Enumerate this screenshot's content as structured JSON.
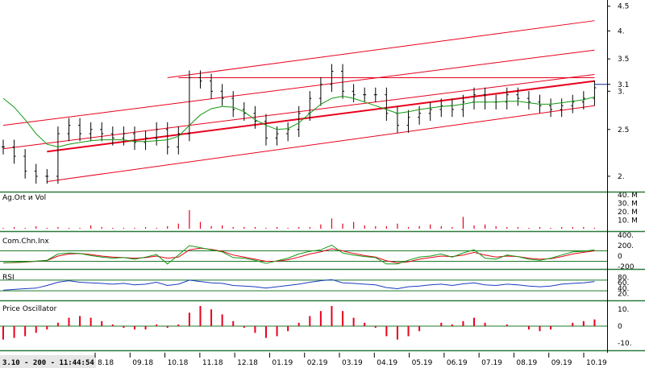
{
  "colors": {
    "price_bar": "#000000",
    "channel": "#e8001c",
    "moving_average": "#119911",
    "volume": "#e8001c",
    "cci": "#119911",
    "cci_signal": "#e8001c",
    "rsi": "#1a3cbf",
    "oscillator": "#e8001c",
    "panel_border": "#2a7a3a",
    "reference_line": "#1f7a2a",
    "last_price_line": "#0b2a8c"
  },
  "timestamp": "3.10 - 200 - 11:44:54",
  "x_tick_labels": [
    "8.18",
    "09.18",
    "10.18",
    "11.18",
    "12.18",
    "01.19",
    "02.19",
    "03.19",
    "04.19",
    "05.19",
    "06.19",
    "07.19",
    "08.19",
    "09.19",
    "10.19"
  ],
  "panels": [
    {
      "name": "price",
      "label": "",
      "ticks": [
        "4.5",
        "4.",
        "3.5",
        "3.1",
        "3.",
        "2.5",
        "2."
      ]
    },
    {
      "name": "volume",
      "label": "Ag.Ort и Vol",
      "ticks": [
        "40. M",
        "30. M",
        "20. M",
        "10. M"
      ]
    },
    {
      "name": "cci",
      "label": "Com.Chn.Inx",
      "ticks": [
        "400.",
        "200.",
        "0",
        "-200"
      ]
    },
    {
      "name": "rsi",
      "label": "RSI",
      "ticks": [
        "80.",
        "60.",
        "40.",
        "20."
      ]
    },
    {
      "name": "oscillator",
      "label": "Price Oscillator",
      "ticks": [
        "10.",
        "0",
        "-10."
      ]
    }
  ],
  "chart_data": [
    {
      "type": "ohlc",
      "panel": "price",
      "y_axis": {
        "scale": "log",
        "range": [
          1.88,
          4.6
        ],
        "ticks": [
          4.5,
          4.0,
          3.5,
          3.1,
          3.0,
          2.5,
          2.0
        ],
        "last_price": 3.1
      },
      "x_axis": {
        "categories": [
          "8.18",
          "09.18",
          "10.18",
          "11.18",
          "12.18",
          "01.19",
          "02.19",
          "03.19",
          "04.19",
          "05.19",
          "06.19",
          "07.19",
          "08.19",
          "09.19",
          "10.19"
        ]
      },
      "close": [
        2.3,
        2.2,
        2.05,
        2.0,
        2.0,
        2.45,
        2.55,
        2.45,
        2.5,
        2.45,
        2.4,
        2.45,
        2.35,
        2.4,
        2.5,
        2.3,
        2.45,
        3.2,
        3.15,
        3.0,
        2.9,
        2.75,
        2.7,
        2.6,
        2.4,
        2.45,
        2.5,
        2.7,
        2.9,
        3.1,
        3.3,
        3.0,
        2.95,
        2.95,
        2.95,
        2.7,
        2.55,
        2.65,
        2.7,
        2.75,
        2.8,
        2.75,
        2.85,
        2.95,
        2.85,
        2.85,
        2.95,
        2.9,
        2.85,
        2.8,
        2.75,
        2.8,
        2.85,
        2.9,
        3.05
      ],
      "ma": [
        2.9,
        2.78,
        2.62,
        2.45,
        2.33,
        2.3,
        2.33,
        2.35,
        2.37,
        2.38,
        2.38,
        2.38,
        2.36,
        2.36,
        2.37,
        2.38,
        2.42,
        2.55,
        2.68,
        2.76,
        2.79,
        2.78,
        2.72,
        2.62,
        2.55,
        2.5,
        2.51,
        2.58,
        2.7,
        2.82,
        2.9,
        2.93,
        2.9,
        2.85,
        2.8,
        2.75,
        2.7,
        2.72,
        2.75,
        2.77,
        2.79,
        2.8,
        2.82,
        2.85,
        2.85,
        2.85,
        2.86,
        2.86,
        2.84,
        2.82,
        2.82,
        2.84,
        2.86,
        2.88,
        2.92
      ],
      "channels": [
        {
          "from": [
            0,
            2.55
          ],
          "to": [
            54,
            3.65
          ],
          "width": 1
        },
        {
          "from": [
            0,
            2.28
          ],
          "to": [
            54,
            3.25
          ],
          "width": 1
        },
        {
          "from": [
            4,
            2.25
          ],
          "to": [
            54,
            3.15
          ],
          "width": 2
        },
        {
          "from": [
            4,
            1.95
          ],
          "to": [
            54,
            2.8
          ],
          "width": 1
        },
        {
          "from": [
            15,
            3.2
          ],
          "to": [
            54,
            4.2
          ],
          "width": 1
        }
      ]
    },
    {
      "type": "bar",
      "panel": "volume",
      "y_axis": {
        "range": [
          0,
          40
        ],
        "unit": "M"
      },
      "values": [
        1,
        2,
        1,
        3,
        1,
        2,
        1,
        1,
        4,
        2,
        1,
        1,
        1,
        2,
        1,
        3,
        6,
        22,
        8,
        3,
        4,
        2,
        2,
        2,
        1,
        2,
        1,
        2,
        2,
        5,
        12,
        6,
        8,
        4,
        3,
        3,
        6,
        2,
        3,
        5,
        3,
        2,
        14,
        4,
        5,
        3,
        2,
        2,
        1,
        2,
        1,
        2,
        2,
        2,
        1
      ]
    },
    {
      "type": "line",
      "panel": "cci",
      "y_axis": {
        "range": [
          -200,
          400
        ],
        "reference_lines": [
          100,
          -100
        ]
      },
      "values": [
        -130,
        -120,
        -110,
        -95,
        -80,
        40,
        60,
        50,
        10,
        -20,
        -40,
        -30,
        -60,
        -20,
        30,
        -150,
        20,
        200,
        160,
        120,
        80,
        -30,
        -40,
        -80,
        -140,
        -90,
        -40,
        40,
        90,
        120,
        210,
        60,
        20,
        -10,
        -30,
        -150,
        -150,
        -80,
        -20,
        0,
        40,
        -20,
        60,
        120,
        -40,
        -60,
        20,
        -10,
        -60,
        -80,
        -40,
        20,
        80,
        90,
        120
      ],
      "signal": [
        -130,
        -125,
        -115,
        -100,
        -85,
        0,
        40,
        50,
        30,
        0,
        -20,
        -30,
        -40,
        -30,
        0,
        -40,
        -20,
        120,
        150,
        130,
        90,
        20,
        -20,
        -60,
        -100,
        -100,
        -70,
        -20,
        40,
        80,
        140,
        100,
        50,
        10,
        -20,
        -90,
        -130,
        -110,
        -60,
        -30,
        0,
        -10,
        20,
        70,
        20,
        -20,
        0,
        -10,
        -40,
        -60,
        -50,
        -10,
        40,
        70,
        100
      ]
    },
    {
      "type": "line",
      "panel": "rsi",
      "y_axis": {
        "range": [
          0,
          100
        ],
        "reference_lines": [
          70,
          30
        ]
      },
      "values": [
        32,
        35,
        38,
        40,
        50,
        62,
        68,
        62,
        60,
        58,
        55,
        58,
        52,
        55,
        62,
        50,
        55,
        70,
        65,
        60,
        58,
        50,
        48,
        45,
        40,
        45,
        50,
        55,
        62,
        68,
        72,
        60,
        58,
        55,
        52,
        42,
        38,
        45,
        48,
        52,
        55,
        50,
        56,
        60,
        52,
        50,
        55,
        52,
        48,
        45,
        48,
        55,
        58,
        60,
        65
      ]
    },
    {
      "type": "bar",
      "panel": "oscillator",
      "y_axis": {
        "range": [
          -12,
          12
        ],
        "reference_lines": [
          0
        ]
      },
      "values": [
        -8,
        -7,
        -6,
        -4,
        -2,
        2,
        5,
        6,
        5,
        3,
        1,
        -1,
        -2,
        -2,
        1,
        -1,
        1,
        8,
        12,
        10,
        7,
        3,
        -1,
        -4,
        -7,
        -6,
        -3,
        2,
        6,
        9,
        12,
        9,
        5,
        2,
        -1,
        -6,
        -8,
        -6,
        -3,
        0,
        2,
        1,
        3,
        5,
        2,
        0,
        1,
        0,
        -2,
        -3,
        -2,
        0,
        2,
        3,
        4
      ]
    }
  ]
}
